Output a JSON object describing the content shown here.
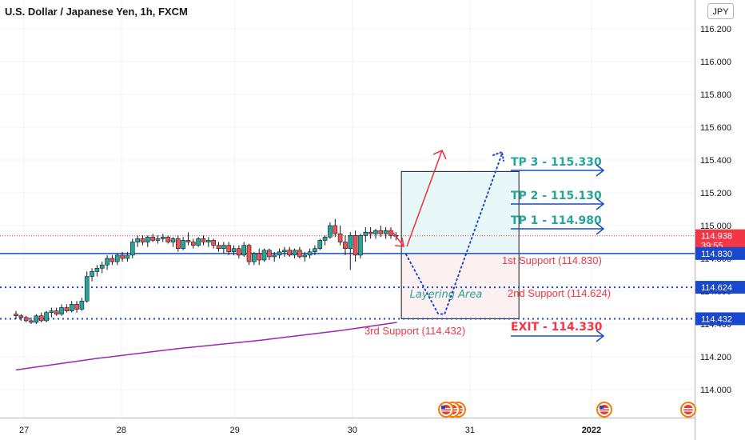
{
  "chart_data": {
    "type": "candlestick",
    "title": "U.S. Dollar / Japanese Yen, 1h, FXCM",
    "currency": "JPY",
    "ylim": [
      113.9,
      116.3
    ],
    "yticks": [
      114.0,
      114.2,
      114.4,
      114.6,
      114.8,
      115.0,
      115.2,
      115.4,
      115.6,
      115.8,
      116.0,
      116.2
    ],
    "ytick_labels": [
      "114.000",
      "114.200",
      "114.400",
      "114.600",
      "114.800",
      "115.000",
      "115.200",
      "115.400",
      "115.600",
      "115.800",
      "116.000",
      "116.200"
    ],
    "x_ticks": [
      {
        "label": "27",
        "bar": 2
      },
      {
        "label": "28",
        "bar": 26
      },
      {
        "label": "29",
        "bar": 54
      },
      {
        "label": "30",
        "bar": 83
      },
      {
        "label": "31",
        "bar": 112
      },
      {
        "label": "2022",
        "bar": 142
      }
    ],
    "bars_total": 172,
    "candles": [
      {
        "o": 114.46,
        "h": 114.48,
        "l": 114.43,
        "c": 114.45
      },
      {
        "o": 114.45,
        "h": 114.46,
        "l": 114.42,
        "c": 114.44
      },
      {
        "o": 114.44,
        "h": 114.45,
        "l": 114.41,
        "c": 114.42
      },
      {
        "o": 114.42,
        "h": 114.44,
        "l": 114.4,
        "c": 114.41
      },
      {
        "o": 114.41,
        "h": 114.46,
        "l": 114.4,
        "c": 114.45
      },
      {
        "o": 114.45,
        "h": 114.47,
        "l": 114.41,
        "c": 114.42
      },
      {
        "o": 114.42,
        "h": 114.48,
        "l": 114.41,
        "c": 114.47
      },
      {
        "o": 114.47,
        "h": 114.5,
        "l": 114.44,
        "c": 114.48
      },
      {
        "o": 114.48,
        "h": 114.5,
        "l": 114.45,
        "c": 114.46
      },
      {
        "o": 114.46,
        "h": 114.52,
        "l": 114.45,
        "c": 114.5
      },
      {
        "o": 114.5,
        "h": 114.52,
        "l": 114.47,
        "c": 114.48
      },
      {
        "o": 114.48,
        "h": 114.54,
        "l": 114.47,
        "c": 114.52
      },
      {
        "o": 114.52,
        "h": 114.54,
        "l": 114.47,
        "c": 114.49
      },
      {
        "o": 114.49,
        "h": 114.56,
        "l": 114.48,
        "c": 114.54
      },
      {
        "o": 114.54,
        "h": 114.72,
        "l": 114.53,
        "c": 114.69
      },
      {
        "o": 114.69,
        "h": 114.74,
        "l": 114.66,
        "c": 114.72
      },
      {
        "o": 114.72,
        "h": 114.76,
        "l": 114.69,
        "c": 114.74
      },
      {
        "o": 114.74,
        "h": 114.78,
        "l": 114.71,
        "c": 114.76
      },
      {
        "o": 114.76,
        "h": 114.82,
        "l": 114.73,
        "c": 114.8
      },
      {
        "o": 114.8,
        "h": 114.82,
        "l": 114.76,
        "c": 114.78
      },
      {
        "o": 114.78,
        "h": 114.83,
        "l": 114.76,
        "c": 114.82
      },
      {
        "o": 114.82,
        "h": 114.84,
        "l": 114.78,
        "c": 114.8
      },
      {
        "o": 114.8,
        "h": 114.84,
        "l": 114.78,
        "c": 114.82
      },
      {
        "o": 114.82,
        "h": 114.92,
        "l": 114.8,
        "c": 114.9
      },
      {
        "o": 114.9,
        "h": 114.94,
        "l": 114.87,
        "c": 114.92
      },
      {
        "o": 114.92,
        "h": 114.94,
        "l": 114.88,
        "c": 114.9
      },
      {
        "o": 114.9,
        "h": 114.94,
        "l": 114.87,
        "c": 114.93
      },
      {
        "o": 114.93,
        "h": 114.95,
        "l": 114.9,
        "c": 114.91
      },
      {
        "o": 114.91,
        "h": 114.94,
        "l": 114.89,
        "c": 114.92
      },
      {
        "o": 114.92,
        "h": 114.95,
        "l": 114.9,
        "c": 114.93
      },
      {
        "o": 114.93,
        "h": 114.94,
        "l": 114.89,
        "c": 114.9
      },
      {
        "o": 114.9,
        "h": 114.93,
        "l": 114.87,
        "c": 114.92
      },
      {
        "o": 114.92,
        "h": 114.94,
        "l": 114.84,
        "c": 114.86
      },
      {
        "o": 114.86,
        "h": 114.93,
        "l": 114.85,
        "c": 114.91
      },
      {
        "o": 114.91,
        "h": 114.96,
        "l": 114.88,
        "c": 114.9
      },
      {
        "o": 114.9,
        "h": 114.92,
        "l": 114.86,
        "c": 114.88
      },
      {
        "o": 114.88,
        "h": 114.93,
        "l": 114.87,
        "c": 114.92
      },
      {
        "o": 114.92,
        "h": 114.94,
        "l": 114.88,
        "c": 114.9
      },
      {
        "o": 114.9,
        "h": 114.93,
        "l": 114.87,
        "c": 114.91
      },
      {
        "o": 114.91,
        "h": 114.92,
        "l": 114.86,
        "c": 114.88
      },
      {
        "o": 114.88,
        "h": 114.9,
        "l": 114.84,
        "c": 114.86
      },
      {
        "o": 114.86,
        "h": 114.9,
        "l": 114.83,
        "c": 114.88
      },
      {
        "o": 114.88,
        "h": 114.9,
        "l": 114.82,
        "c": 114.84
      },
      {
        "o": 114.84,
        "h": 114.88,
        "l": 114.82,
        "c": 114.86
      },
      {
        "o": 114.86,
        "h": 114.88,
        "l": 114.8,
        "c": 114.82
      },
      {
        "o": 114.82,
        "h": 114.9,
        "l": 114.81,
        "c": 114.88
      },
      {
        "o": 114.88,
        "h": 114.89,
        "l": 114.76,
        "c": 114.78
      },
      {
        "o": 114.78,
        "h": 114.84,
        "l": 114.76,
        "c": 114.83
      },
      {
        "o": 114.83,
        "h": 114.86,
        "l": 114.76,
        "c": 114.79
      },
      {
        "o": 114.79,
        "h": 114.86,
        "l": 114.78,
        "c": 114.85
      },
      {
        "o": 114.85,
        "h": 114.86,
        "l": 114.79,
        "c": 114.81
      },
      {
        "o": 114.81,
        "h": 114.84,
        "l": 114.78,
        "c": 114.82
      },
      {
        "o": 114.82,
        "h": 114.86,
        "l": 114.8,
        "c": 114.84
      },
      {
        "o": 114.84,
        "h": 114.87,
        "l": 114.81,
        "c": 114.85
      },
      {
        "o": 114.85,
        "h": 114.87,
        "l": 114.81,
        "c": 114.82
      },
      {
        "o": 114.82,
        "h": 114.86,
        "l": 114.8,
        "c": 114.85
      },
      {
        "o": 114.85,
        "h": 114.87,
        "l": 114.8,
        "c": 114.81
      },
      {
        "o": 114.81,
        "h": 114.84,
        "l": 114.78,
        "c": 114.82
      },
      {
        "o": 114.82,
        "h": 114.86,
        "l": 114.8,
        "c": 114.84
      },
      {
        "o": 114.84,
        "h": 114.88,
        "l": 114.82,
        "c": 114.86
      },
      {
        "o": 114.86,
        "h": 114.92,
        "l": 114.85,
        "c": 114.91
      },
      {
        "o": 114.91,
        "h": 114.94,
        "l": 114.88,
        "c": 114.93
      },
      {
        "o": 114.93,
        "h": 115.02,
        "l": 114.92,
        "c": 115.0
      },
      {
        "o": 115.0,
        "h": 115.04,
        "l": 114.93,
        "c": 114.95
      },
      {
        "o": 114.95,
        "h": 115.0,
        "l": 114.88,
        "c": 114.9
      },
      {
        "o": 114.9,
        "h": 114.94,
        "l": 114.82,
        "c": 114.86
      },
      {
        "o": 114.86,
        "h": 114.96,
        "l": 114.73,
        "c": 114.94
      },
      {
        "o": 114.94,
        "h": 114.97,
        "l": 114.78,
        "c": 114.82
      },
      {
        "o": 114.82,
        "h": 114.95,
        "l": 114.8,
        "c": 114.94
      },
      {
        "o": 114.94,
        "h": 114.99,
        "l": 114.9,
        "c": 114.96
      },
      {
        "o": 114.96,
        "h": 114.99,
        "l": 114.92,
        "c": 114.95
      },
      {
        "o": 114.95,
        "h": 114.98,
        "l": 114.92,
        "c": 114.97
      },
      {
        "o": 114.97,
        "h": 115.0,
        "l": 114.93,
        "c": 114.95
      },
      {
        "o": 114.95,
        "h": 114.99,
        "l": 114.92,
        "c": 114.97
      },
      {
        "o": 114.97,
        "h": 114.99,
        "l": 114.92,
        "c": 114.94
      },
      {
        "o": 114.94,
        "h": 114.96,
        "l": 114.91,
        "c": 114.938
      }
    ],
    "candle_bar_start": 0,
    "candle_step": 2,
    "ma_line": {
      "color": "#9c27b0",
      "points": [
        [
          0,
          114.12
        ],
        [
          20,
          114.19
        ],
        [
          40,
          114.25
        ],
        [
          60,
          114.3
        ],
        [
          80,
          114.36
        ],
        [
          94,
          114.41
        ]
      ]
    },
    "current_price": {
      "label": "114.938",
      "countdown": "39:55",
      "value": 114.938,
      "color": "#f23645"
    },
    "levels": [
      {
        "value": 114.83,
        "label": "114.830",
        "style": "solid",
        "color": "#1848cc"
      },
      {
        "value": 114.624,
        "label": "114.624",
        "style": "dotted",
        "color": "#1848cc"
      },
      {
        "value": 114.432,
        "label": "114.432",
        "style": "dotted",
        "color": "#1848cc"
      }
    ],
    "annotations": {
      "tp3": "TP 3 - 115.330",
      "tp2": "TP 2 - 115.130",
      "tp1": "TP 1 - 114.980",
      "support1": "1st Support (114.830)",
      "support2": "2nd Support (114.624)",
      "support3": "3rd Support (114.432)",
      "exit": "EXIT - 114.330",
      "layering": "Layering Area"
    },
    "zone": {
      "bar_start": 95,
      "bar_end": 124,
      "top": 115.33,
      "bottom": 114.432
    },
    "colors": {
      "up": "#26a69a",
      "down": "#ef5350",
      "wick": "#131722",
      "tp": "#26a69a",
      "sup": "#f23645",
      "arrow": "#1848cc"
    }
  }
}
